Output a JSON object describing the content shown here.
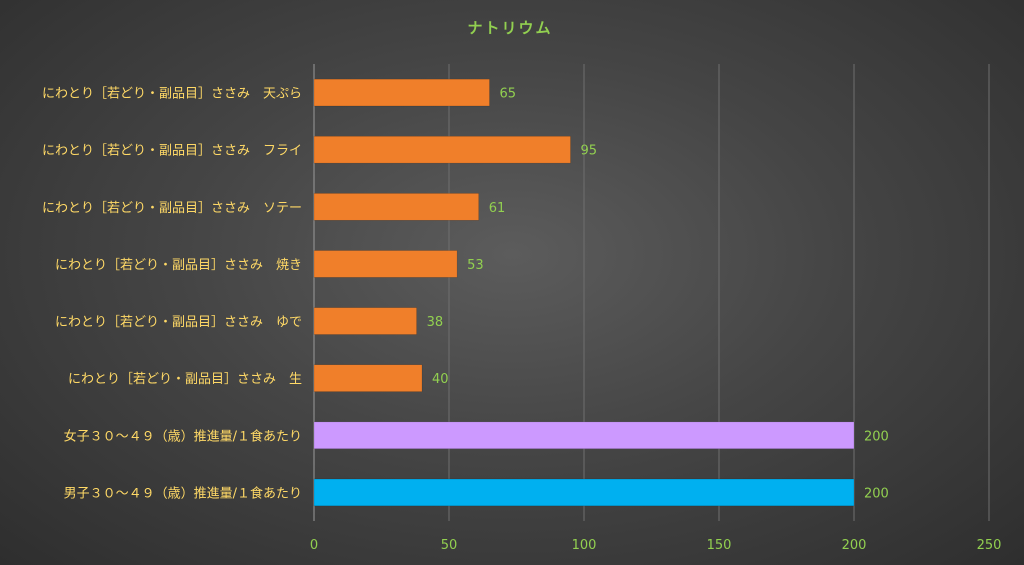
{
  "chart_data": {
    "type": "bar",
    "orientation": "horizontal",
    "title": "ナトリウム",
    "categories": [
      "にわとり［若どり・副品目］ささみ　天ぷら",
      "にわとり［若どり・副品目］ささみ　フライ",
      "にわとり［若どり・副品目］ささみ　ソテー",
      "にわとり［若どり・副品目］ささみ　焼き",
      "にわとり［若どり・副品目］ささみ　ゆで",
      "にわとり［若どり・副品目］ささみ　生",
      "女子３０～４９（歳）推進量/１食あたり",
      "男子３０～４９（歳）推進量/１食あたり"
    ],
    "values": [
      65,
      95,
      61,
      53,
      38,
      40,
      200,
      200
    ],
    "bar_colors": [
      "#f07f2a",
      "#f07f2a",
      "#f07f2a",
      "#f07f2a",
      "#f07f2a",
      "#f07f2a",
      "#cc99ff",
      "#00b0f0"
    ],
    "data_labels": [
      "65",
      "95",
      "61",
      "53",
      "38",
      "40",
      "200",
      "200"
    ],
    "x_ticks": [
      "0",
      "50",
      "100",
      "150",
      "200",
      "250"
    ],
    "xlim": [
      0,
      250
    ],
    "grid": true,
    "legend": "none",
    "colors": {
      "title": "#92d050",
      "category_labels": "#ffd966",
      "tick_labels": "#92d050",
      "data_labels": "#92d050"
    }
  }
}
